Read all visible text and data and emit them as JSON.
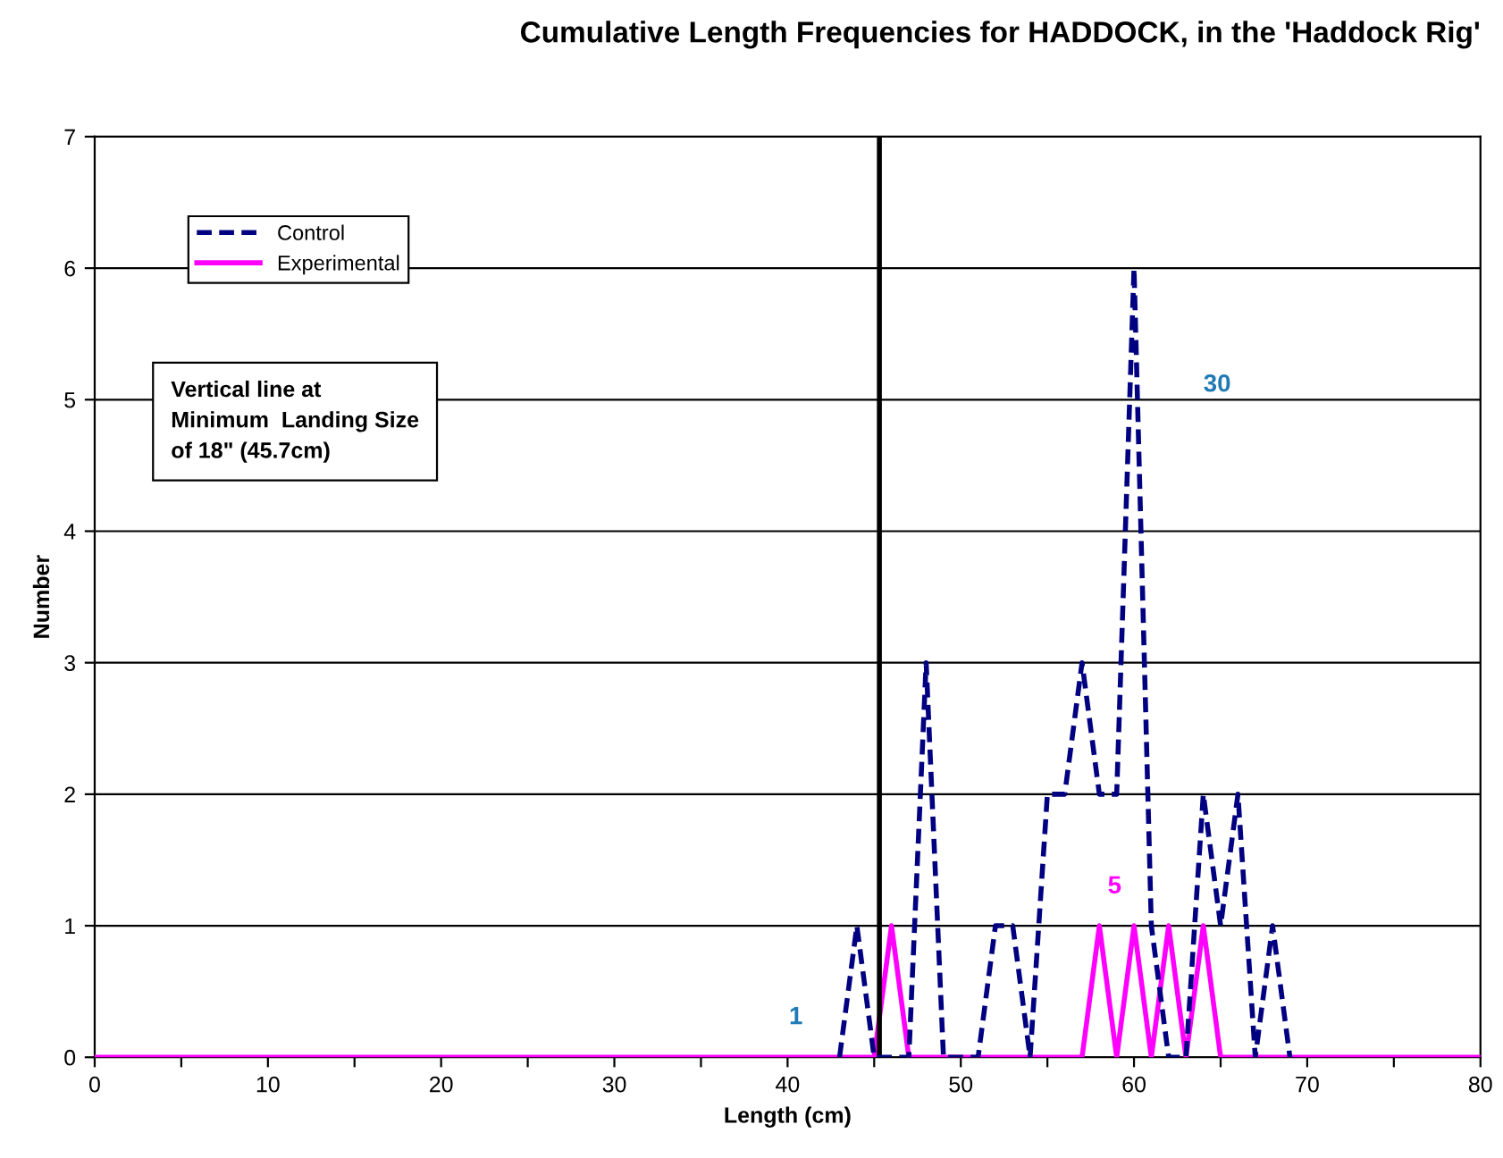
{
  "chart_data": {
    "type": "line",
    "title": "Cumulative Length Frequencies for HADDOCK, in the 'Haddock Rig'",
    "xlabel": "Length (cm)",
    "ylabel": "Number",
    "x": [
      0,
      1,
      2,
      3,
      4,
      5,
      6,
      7,
      8,
      9,
      10,
      11,
      12,
      13,
      14,
      15,
      16,
      17,
      18,
      19,
      20,
      21,
      22,
      23,
      24,
      25,
      26,
      27,
      28,
      29,
      30,
      31,
      32,
      33,
      34,
      35,
      36,
      37,
      38,
      39,
      40,
      41,
      42,
      43,
      44,
      45,
      46,
      47,
      48,
      49,
      50,
      51,
      52,
      53,
      54,
      55,
      56,
      57,
      58,
      59,
      60,
      61,
      62,
      63,
      64,
      65,
      66,
      67,
      68,
      69,
      70,
      71,
      72,
      73,
      74,
      75,
      76,
      77,
      78,
      79,
      80
    ],
    "series": [
      {
        "name": "Control",
        "color": "#000080",
        "line_style": "dashed",
        "values": [
          null,
          null,
          null,
          null,
          null,
          null,
          null,
          null,
          null,
          null,
          null,
          null,
          null,
          null,
          null,
          null,
          null,
          null,
          null,
          null,
          null,
          null,
          null,
          null,
          null,
          null,
          null,
          null,
          null,
          null,
          null,
          null,
          null,
          null,
          null,
          null,
          null,
          null,
          null,
          null,
          null,
          null,
          null,
          0,
          1,
          0,
          0,
          0,
          3,
          0,
          0,
          0,
          1,
          1,
          0,
          2,
          2,
          3,
          2,
          2,
          6,
          1,
          0,
          0,
          2,
          1,
          2,
          0,
          1,
          0,
          null,
          null,
          null,
          null,
          null,
          null,
          null,
          null,
          null,
          null,
          null
        ]
      },
      {
        "name": "Experimental",
        "color": "#ff00ff",
        "line_style": "solid",
        "values": [
          0,
          0,
          0,
          0,
          0,
          0,
          0,
          0,
          0,
          0,
          0,
          0,
          0,
          0,
          0,
          0,
          0,
          0,
          0,
          0,
          0,
          0,
          0,
          0,
          0,
          0,
          0,
          0,
          0,
          0,
          0,
          0,
          0,
          0,
          0,
          0,
          0,
          0,
          0,
          0,
          0,
          0,
          0,
          0,
          0,
          0,
          1,
          0,
          0,
          0,
          0,
          0,
          0,
          0,
          0,
          0,
          0,
          0,
          1,
          0,
          1,
          0,
          1,
          0,
          1,
          0,
          0,
          0,
          0,
          0,
          0,
          0,
          0,
          0,
          0,
          0,
          0,
          0,
          0,
          0,
          0
        ]
      }
    ],
    "xlim": [
      0,
      80
    ],
    "xticks": [
      0,
      {
        "value": 5,
        "label": null
      },
      10,
      {
        "value": 15,
        "label": null
      },
      20,
      {
        "value": 25,
        "label": null
      },
      30,
      {
        "value": 35,
        "label": null
      },
      40,
      {
        "value": 45,
        "label": null
      },
      50,
      {
        "value": 55,
        "label": null
      },
      60,
      {
        "value": 65,
        "label": null
      },
      70,
      {
        "value": 75,
        "label": null
      },
      80
    ],
    "ylim": [
      0,
      7
    ],
    "yticks": [
      0,
      1,
      2,
      3,
      4,
      5,
      6,
      7
    ],
    "grid": "y",
    "legend": "top left",
    "marker": "none",
    "ref_lines": [
      {
        "axis": "x",
        "value": 45.3,
        "label": null,
        "color": "#000000"
      }
    ],
    "annotations": [
      "1",
      "30",
      "5",
      "Vertical line at\nMinimum  Landing Size\nof 18\" (45.7cm)"
    ]
  }
}
